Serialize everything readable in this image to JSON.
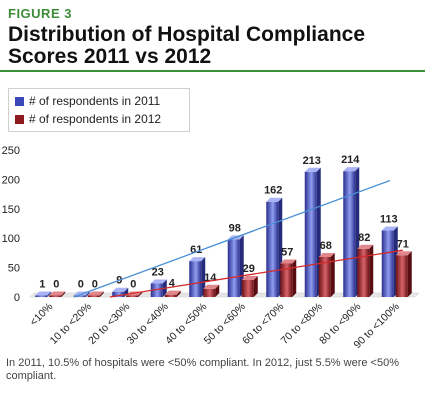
{
  "figure_label": "FIGURE 3",
  "title": "Distribution of Hospital Compliance Scores 2011 vs 2012",
  "note": "In 2011, 10.5% of hospitals were <50% compliant. In 2012, just 5.5% were <50% compliant.",
  "colors": {
    "accent": "#3d8c3a",
    "series_2011": "#3b46b8",
    "series_2012": "#8e1a1f",
    "trend_2011": "#4a8fd6",
    "trend_2012": "#d42a2a"
  },
  "chart_data": {
    "type": "bar",
    "title": "Distribution of Hospital Compliance Scores 2011 vs 2012",
    "xlabel": "",
    "ylabel": "",
    "ylim": [
      0,
      250
    ],
    "yticks": [
      0,
      50,
      100,
      150,
      200,
      250
    ],
    "grid": false,
    "legend_position": "top-left",
    "categories": [
      "<10%",
      "10 to <20%",
      "20 to <30%",
      "30 to <40%",
      "40 to <50%",
      "50 to <60%",
      "60 to <70%",
      "70 to <80%",
      "80 to <90%",
      "90 to <100%"
    ],
    "series": [
      {
        "name": "# of respondents in 2011",
        "values": [
          1,
          0,
          9,
          23,
          61,
          98,
          162,
          213,
          214,
          113
        ]
      },
      {
        "name": "# of respondents in 2012",
        "values": [
          0,
          0,
          0,
          4,
          14,
          29,
          57,
          68,
          82,
          71
        ]
      }
    ],
    "trendlines": true
  }
}
